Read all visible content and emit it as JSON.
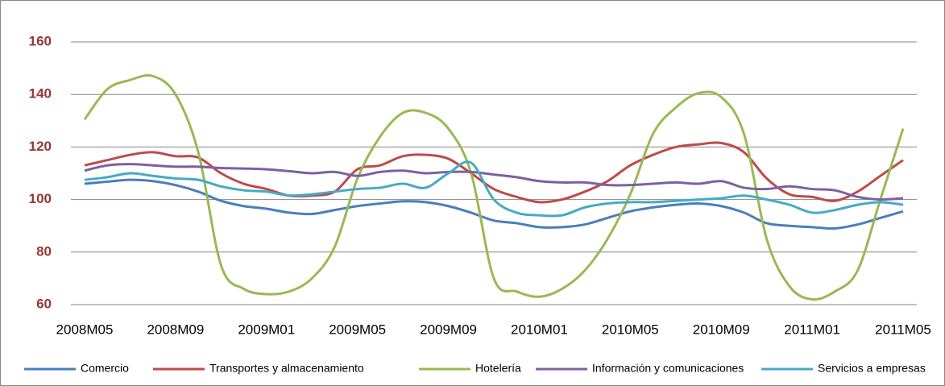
{
  "chart_data": {
    "type": "line",
    "categories": [
      "2008M05",
      null,
      null,
      null,
      "2008M09",
      null,
      null,
      null,
      "2009M01",
      null,
      null,
      null,
      "2009M05",
      null,
      null,
      null,
      "2009M09",
      null,
      null,
      null,
      "2010M01",
      null,
      null,
      null,
      "2010M05",
      null,
      null,
      null,
      "2010M09",
      null,
      null,
      null,
      "2011M01",
      null,
      null,
      null,
      "2011M05"
    ],
    "ylim": [
      60,
      160
    ],
    "yticks": [
      60,
      80,
      100,
      120,
      140,
      160
    ],
    "grid": true,
    "legend": "bottom",
    "series": [
      {
        "name": "Comercio",
        "color": "#4a7ebb",
        "values": [
          106,
          106.8,
          107.5,
          107,
          105.5,
          103,
          99.5,
          97.5,
          96.5,
          95,
          94.5,
          96,
          97.5,
          98.5,
          99.3,
          99,
          97.5,
          95,
          92,
          91,
          89.5,
          89.5,
          90.5,
          93,
          95.5,
          97,
          98,
          98.5,
          97.5,
          95,
          91,
          90,
          89.5,
          89,
          90.5,
          93,
          95.5
        ]
      },
      {
        "name": "Transportes y almacenamiento",
        "color": "#be4b48",
        "values": [
          113,
          115,
          117,
          118,
          116.5,
          116,
          110,
          106,
          104,
          101.5,
          101.5,
          103,
          111.5,
          113,
          116.5,
          117,
          115.5,
          110,
          104,
          101,
          99,
          100,
          103,
          107,
          113,
          117,
          120,
          121,
          121.5,
          118,
          108,
          102,
          101,
          99.5,
          103,
          109,
          115
        ]
      },
      {
        "name": "Hotelería",
        "color": "#98b954",
        "values": [
          130.5,
          142,
          145.5,
          147,
          140,
          118,
          75,
          66,
          64,
          65,
          70,
          82,
          108,
          124,
          133,
          133,
          127,
          110,
          70,
          65,
          63,
          66,
          73,
          85,
          102,
          125,
          135,
          140.5,
          139,
          125,
          85,
          67,
          62,
          65,
          73,
          100,
          127
        ]
      },
      {
        "name": "Información y comunicaciones",
        "color": "#7d60a0",
        "values": [
          111,
          113,
          113.5,
          113,
          112.5,
          112.5,
          112,
          111.8,
          111.5,
          110.8,
          110,
          110.5,
          109,
          110.5,
          111,
          110,
          110.5,
          110.5,
          109.5,
          108.5,
          107,
          106.5,
          106.5,
          105.5,
          105.5,
          106,
          106.5,
          106,
          107,
          104.5,
          104,
          105,
          104,
          103.5,
          101,
          100,
          100.5
        ]
      },
      {
        "name": "Servicios a empresas",
        "color": "#46aac5",
        "values": [
          107.5,
          108.5,
          110,
          109,
          108,
          107.5,
          105,
          103.5,
          103,
          101.5,
          102,
          103,
          104,
          104.5,
          106,
          104.5,
          110,
          114,
          100,
          95,
          94,
          94,
          97,
          98.5,
          99,
          99,
          99.5,
          100,
          100.5,
          101.5,
          100,
          98,
          95,
          96,
          98,
          99,
          98
        ]
      }
    ]
  }
}
